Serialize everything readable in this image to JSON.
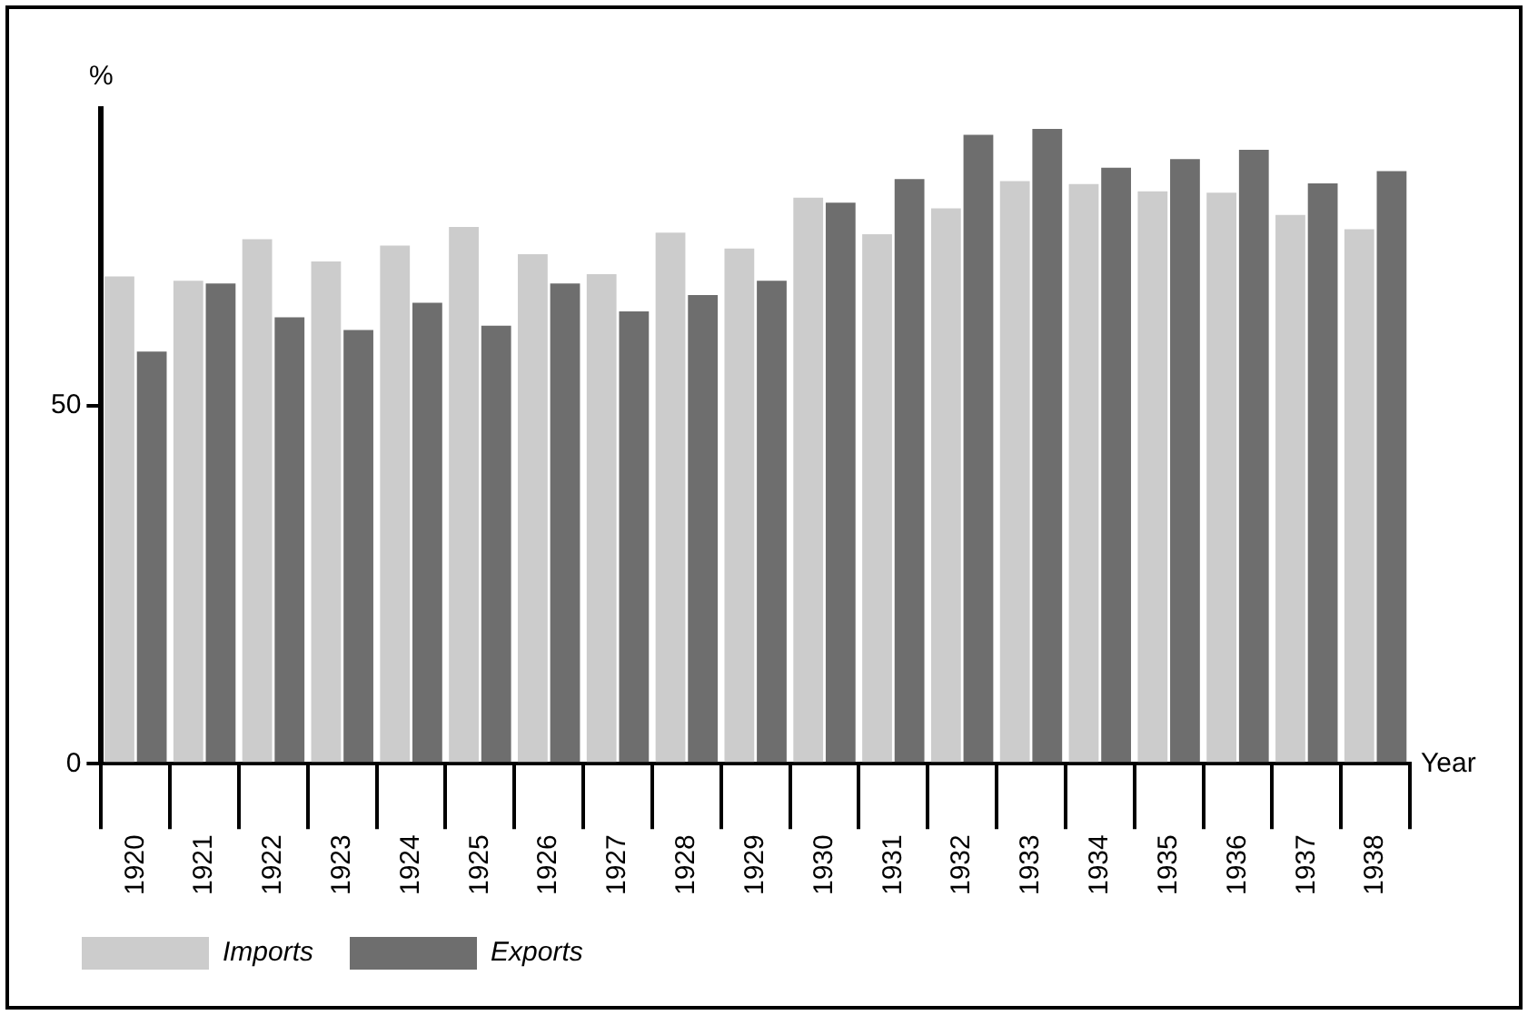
{
  "chart_data": {
    "type": "bar",
    "xlabel": "Year",
    "ylabel": "%",
    "categories": [
      "1920",
      "1921",
      "1922",
      "1923",
      "1924",
      "1925",
      "1926",
      "1927",
      "1928",
      "1929",
      "1930",
      "1931",
      "1932",
      "1933",
      "1934",
      "1935",
      "1936",
      "1937",
      "1938"
    ],
    "series": [
      {
        "name": "Imports",
        "color": "#cccccc",
        "values": [
          68.1,
          67.5,
          73.3,
          70.2,
          72.4,
          75,
          71.2,
          68.4,
          74.2,
          72,
          79.1,
          74,
          77.6,
          81.4,
          81,
          80,
          79.8,
          76.7,
          74.7
        ]
      },
      {
        "name": "Exports",
        "color": "#6e6e6e",
        "values": [
          57.6,
          67.1,
          62.4,
          60.6,
          64.4,
          61.2,
          67.1,
          63.2,
          65.5,
          67.5,
          78.4,
          81.7,
          87.9,
          88.7,
          83.3,
          84.5,
          85.8,
          81.1,
          82.8
        ]
      }
    ],
    "ylim": [
      0,
      91.5
    ],
    "yticks": [
      0,
      50
    ],
    "legend": "bottom left"
  }
}
